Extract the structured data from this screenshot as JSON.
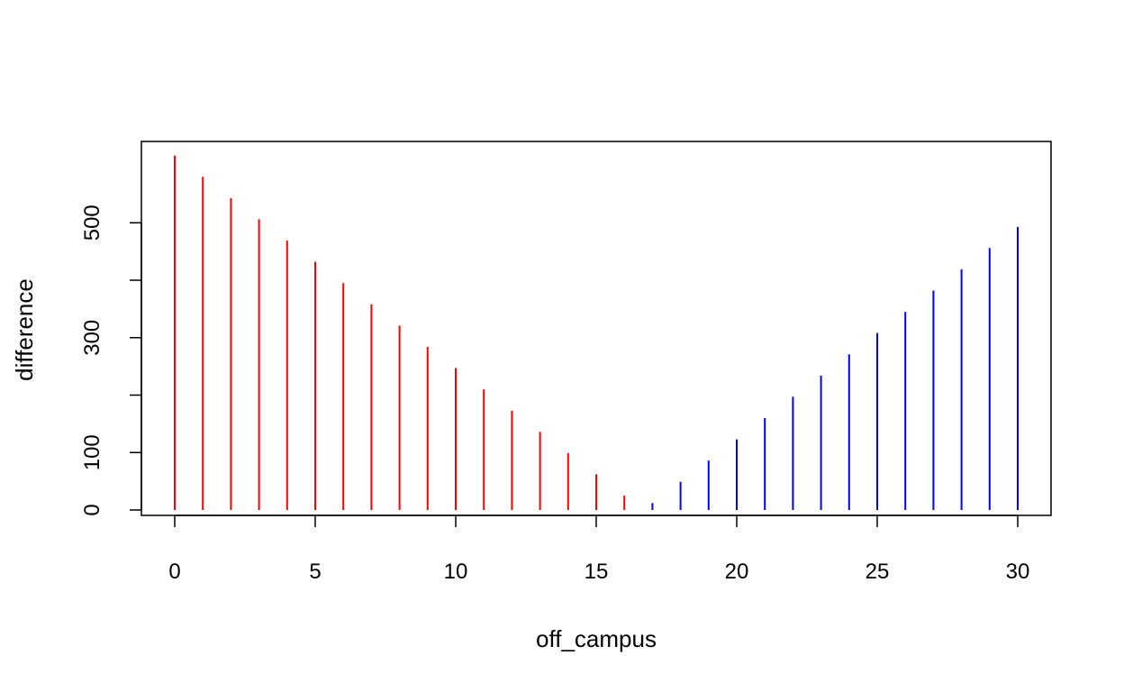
{
  "chart_data": {
    "type": "bar",
    "style": "vertical-lines",
    "title": "",
    "xlabel": "off_campus",
    "ylabel": "difference",
    "xlim": [
      0,
      30
    ],
    "ylim": [
      0,
      620
    ],
    "x_ticks": [
      0,
      5,
      10,
      15,
      20,
      25,
      30
    ],
    "y_ticks": [
      0,
      100,
      200,
      300,
      400,
      500
    ],
    "y_tick_labels": [
      "0",
      "100",
      "",
      "300",
      "",
      "500"
    ],
    "grid": false,
    "legend": "none",
    "colors": {
      "negative": "#ff0000",
      "positive": "#0000ff",
      "axis": "#000000"
    },
    "x": [
      0,
      1,
      2,
      3,
      4,
      5,
      6,
      7,
      8,
      9,
      10,
      11,
      12,
      13,
      14,
      15,
      16,
      17,
      18,
      19,
      20,
      21,
      22,
      23,
      24,
      25,
      26,
      27,
      28,
      29,
      30
    ],
    "values": [
      617,
      580,
      543,
      506,
      469,
      432,
      395,
      358,
      321,
      284,
      247,
      210,
      173,
      136,
      99,
      62,
      25,
      12,
      49,
      86,
      123,
      160,
      197,
      234,
      271,
      308,
      345,
      382,
      419,
      456,
      493
    ],
    "sign_color": [
      "negative",
      "negative",
      "negative",
      "negative",
      "negative",
      "negative",
      "negative",
      "negative",
      "negative",
      "negative",
      "negative",
      "negative",
      "negative",
      "negative",
      "negative",
      "negative",
      "negative",
      "positive",
      "positive",
      "positive",
      "positive",
      "positive",
      "positive",
      "positive",
      "positive",
      "positive",
      "positive",
      "positive",
      "positive",
      "positive",
      "positive"
    ]
  }
}
